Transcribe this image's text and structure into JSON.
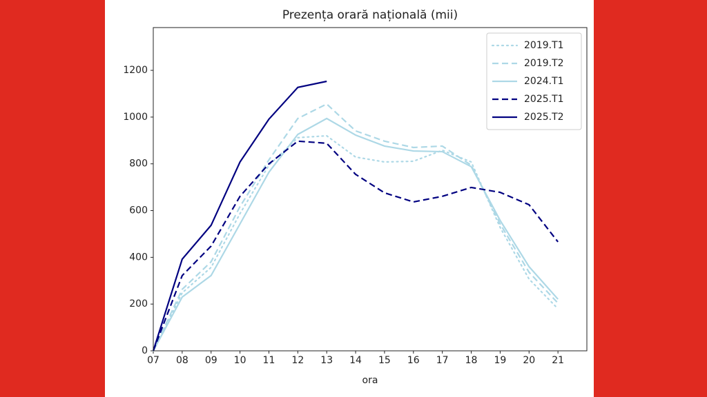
{
  "chart_data": {
    "type": "line",
    "title": "Prezența orară națională (mii)",
    "x_label": "ora",
    "x": [
      7,
      8,
      9,
      10,
      11,
      12,
      13,
      14,
      15,
      16,
      17,
      18,
      19,
      20,
      21
    ],
    "xlim": [
      7,
      22
    ],
    "xticks": [
      {
        "value": 7,
        "label": "07"
      },
      {
        "value": 8,
        "label": "08"
      },
      {
        "value": 9,
        "label": "09"
      },
      {
        "value": 10,
        "label": "10"
      },
      {
        "value": 11,
        "label": "11"
      },
      {
        "value": 12,
        "label": "12"
      },
      {
        "value": 13,
        "label": "13"
      },
      {
        "value": 14,
        "label": "14"
      },
      {
        "value": 15,
        "label": "15"
      },
      {
        "value": 16,
        "label": "16"
      },
      {
        "value": 17,
        "label": "17"
      },
      {
        "value": 18,
        "label": "18"
      },
      {
        "value": 19,
        "label": "19"
      },
      {
        "value": 20,
        "label": "20"
      },
      {
        "value": 21,
        "label": "21"
      }
    ],
    "ylim": [
      0,
      1383
    ],
    "yticks": [
      0,
      200,
      400,
      600,
      800,
      1000,
      1200
    ],
    "legend": "upper right",
    "series": [
      {
        "name": "2019.T1",
        "color": "#add8e6",
        "linestyle": "dotted",
        "values": [
          0,
          248,
          357,
          587,
          794,
          912,
          920,
          829,
          808,
          811,
          858,
          808,
          528,
          307,
          180
        ]
      },
      {
        "name": "2019.T2",
        "color": "#add8e6",
        "linestyle": "dashed",
        "values": [
          0,
          263,
          381,
          617,
          817,
          994,
          1056,
          941,
          897,
          870,
          876,
          794,
          543,
          336,
          204
        ]
      },
      {
        "name": "2024.T1",
        "color": "#add8e6",
        "linestyle": "solid",
        "values": [
          0,
          230,
          322,
          543,
          764,
          926,
          994,
          923,
          876,
          855,
          852,
          788,
          558,
          360,
          221
        ]
      },
      {
        "name": "2025.T1",
        "color": "#000080",
        "linestyle": "dashed",
        "values": [
          0,
          322,
          448,
          661,
          800,
          897,
          888,
          755,
          676,
          637,
          661,
          699,
          678,
          625,
          466
        ]
      },
      {
        "name": "2025.T2",
        "color": "#000080",
        "linestyle": "solid",
        "values": [
          0,
          392,
          537,
          808,
          991,
          1127,
          1153,
          null,
          null,
          null,
          null,
          null,
          null,
          null,
          null
        ]
      }
    ]
  }
}
